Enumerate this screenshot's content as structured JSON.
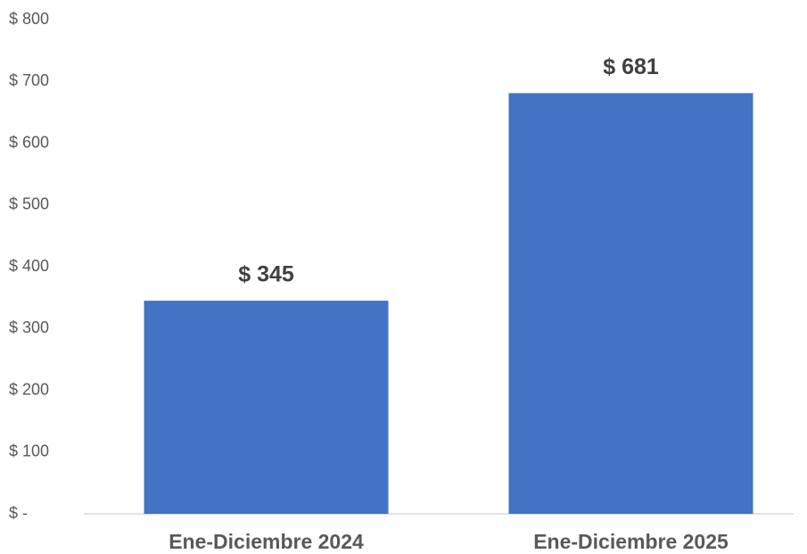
{
  "chart_data": {
    "type": "bar",
    "categories": [
      "Ene-Diciembre 2024",
      "Ene-Diciembre 2025"
    ],
    "values": [
      345,
      681
    ],
    "value_labels": [
      "$ 345",
      "$ 681"
    ],
    "color": "#4472c4",
    "ylim": [
      0,
      800
    ],
    "yticks": [
      {
        "value": 0,
        "label": "$ -"
      },
      {
        "value": 100,
        "label": "$ 100"
      },
      {
        "value": 200,
        "label": "$ 200"
      },
      {
        "value": 300,
        "label": "$ 300"
      },
      {
        "value": 400,
        "label": "$ 400"
      },
      {
        "value": 500,
        "label": "$ 500"
      },
      {
        "value": 600,
        "label": "$ 600"
      },
      {
        "value": 700,
        "label": "$ 700"
      },
      {
        "value": 800,
        "label": "$ 800"
      }
    ],
    "grid": false
  }
}
